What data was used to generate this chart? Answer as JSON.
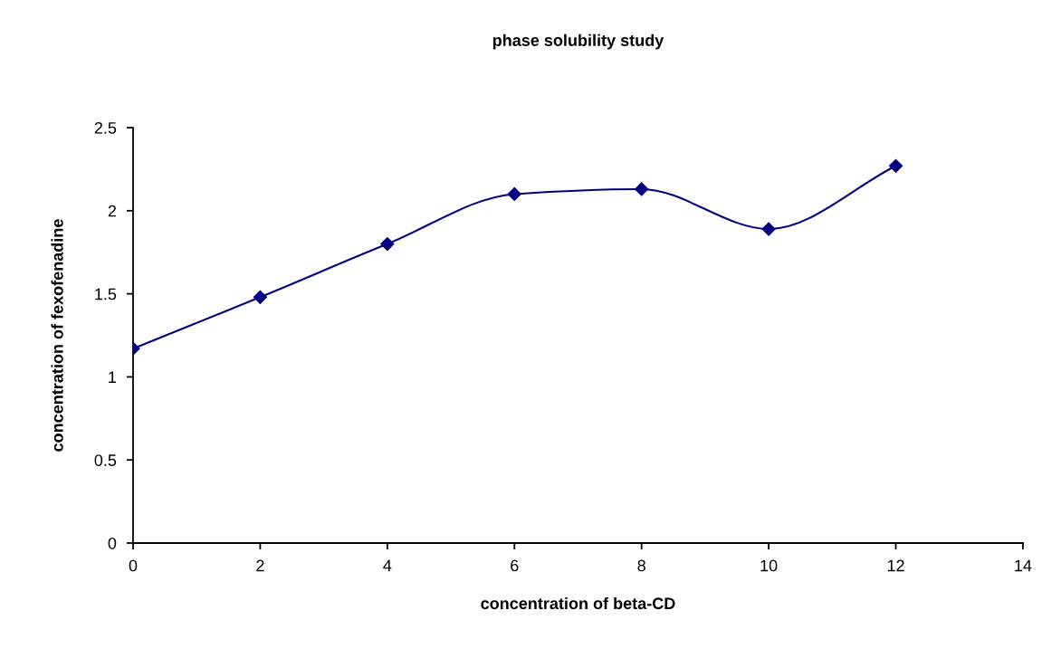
{
  "chart_data": {
    "type": "line",
    "title": "phase solubility study",
    "xlabel": "concentration of beta-CD",
    "ylabel": "concentration of fexofenadine",
    "x": [
      0,
      2,
      4,
      6,
      8,
      10,
      12
    ],
    "series": [
      {
        "color": "#000080",
        "values": [
          1.17,
          1.48,
          1.8,
          2.1,
          2.13,
          1.89,
          2.27
        ]
      }
    ],
    "xlim": [
      0,
      14
    ],
    "xticks": [
      0,
      2,
      4,
      6,
      8,
      10,
      12,
      14
    ],
    "ylim": [
      0,
      2.5
    ],
    "yticks": [
      0,
      0.5,
      1,
      1.5,
      2,
      2.5
    ],
    "grid": false,
    "legend": false,
    "marker": "diamond",
    "line_style": "solid"
  }
}
